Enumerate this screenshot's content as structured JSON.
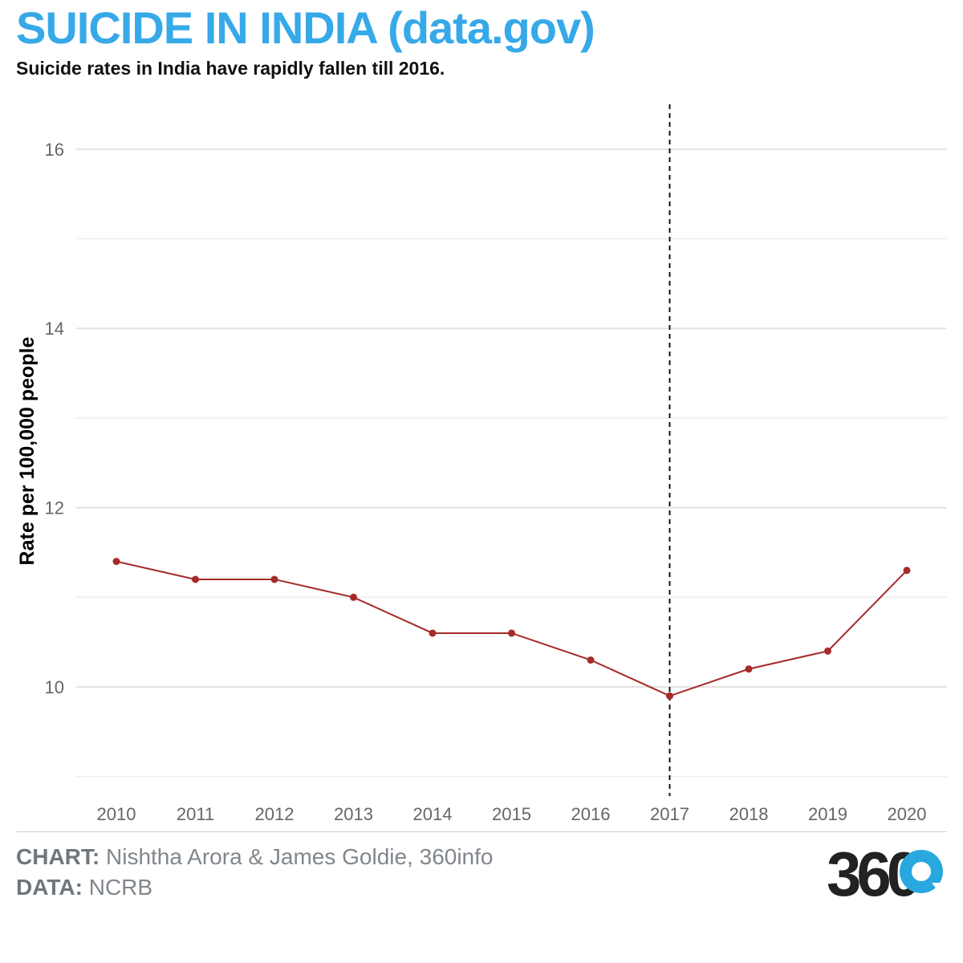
{
  "header": {
    "title": "SUICIDE IN INDIA (data.gov)",
    "subtitle": "Suicide rates in India have rapidly fallen till 2016."
  },
  "footer": {
    "chart_label": "CHART:",
    "chart_credit": "Nishtha Arora & James Goldie, 360info",
    "data_label": "DATA:",
    "data_credit": "NCRB",
    "logo_text": "360"
  },
  "colors": {
    "title": "#36a9e8",
    "line": "#a52a2a",
    "logo_dark": "#222222",
    "logo_accent": "#29a8e0"
  },
  "chart_data": {
    "type": "line",
    "title": "SUICIDE IN INDIA (data.gov)",
    "subtitle": "Suicide rates in India have rapidly fallen till 2016.",
    "xlabel": "",
    "ylabel": "Rate per 100,000 people",
    "x": [
      2010,
      2011,
      2012,
      2013,
      2014,
      2015,
      2016,
      2017,
      2018,
      2019,
      2020
    ],
    "series": [
      {
        "values": [
          11.4,
          11.2,
          11.2,
          11.0,
          10.6,
          10.6,
          10.3,
          9.9,
          10.2,
          10.4,
          11.3
        ]
      }
    ],
    "ylim": [
      8.8,
      16.5
    ],
    "yticks": [
      10,
      12,
      14,
      16
    ],
    "grid": true,
    "annotations": [
      {
        "type": "vertical-dashed-line",
        "x": 2017
      }
    ],
    "legend": "none"
  }
}
